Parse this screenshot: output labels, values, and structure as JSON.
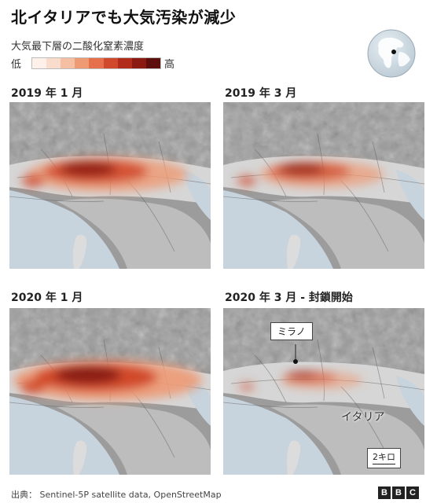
{
  "title": "北イタリアでも大気汚染が減少",
  "legend": {
    "label": "大気最下層の二酸化窒素濃度",
    "low": "低",
    "high": "高",
    "colors": [
      "#fdf1ea",
      "#f9dccb",
      "#f4bfa2",
      "#ee9a74",
      "#e5704b",
      "#d1492c",
      "#b22c1c",
      "#8a1a12",
      "#5c0f0c"
    ]
  },
  "panels": [
    {
      "label": "2019 年 1 月",
      "intensity": 0.8
    },
    {
      "label": "2019 年 3 月",
      "intensity": 0.55
    },
    {
      "label": "2020 年 1 月",
      "intensity": 1.0
    },
    {
      "label": "2020 年 3 月 - 封鎖開始",
      "intensity": 0.25
    }
  ],
  "annotations": {
    "milan": "ミラノ",
    "italy": "イタリア",
    "scale": "2キロ"
  },
  "source": "出典： Sentinel-5P satellite data, OpenStreetMap",
  "brand": [
    "B",
    "B",
    "C"
  ]
}
